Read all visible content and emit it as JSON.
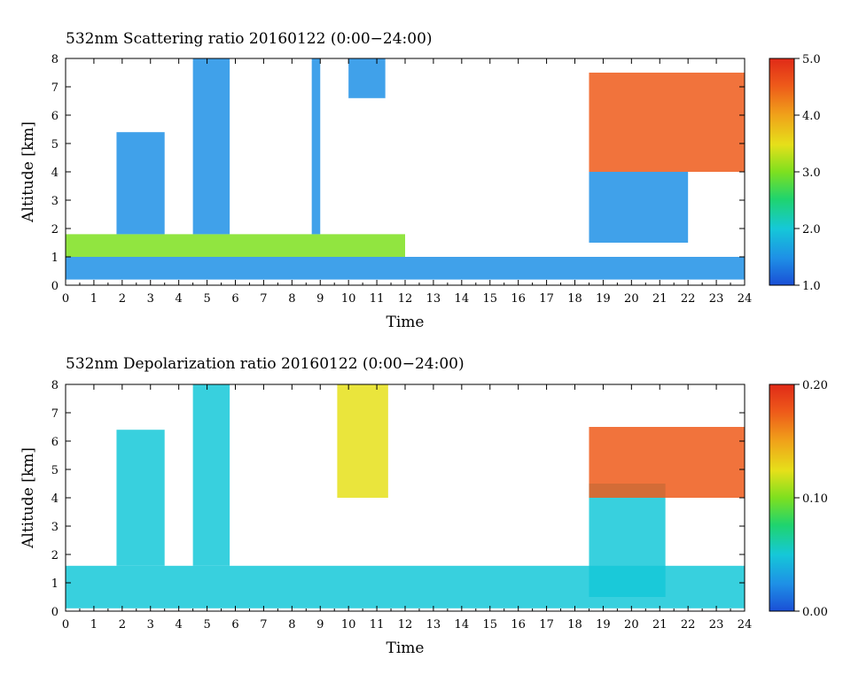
{
  "colors": {
    "scale": [
      "#1a4fd6",
      "#1e90e6",
      "#15c8d8",
      "#1fd46e",
      "#7ee01f",
      "#e6e01a",
      "#f0a21a",
      "#ee5a1a",
      "#e02a18"
    ]
  },
  "chart_data": [
    {
      "type": "heatmap",
      "title": "532nm Scattering ratio  20160122 (0:00−24:00)",
      "xlabel": "Time",
      "ylabel": "Altitude [km]",
      "xlim": [
        0,
        24
      ],
      "ylim": [
        0,
        8
      ],
      "x_ticks": [
        "0",
        "1",
        "2",
        "3",
        "4",
        "5",
        "6",
        "7",
        "8",
        "9",
        "10",
        "11",
        "12",
        "13",
        "14",
        "15",
        "16",
        "17",
        "18",
        "19",
        "20",
        "21",
        "22",
        "23",
        "24"
      ],
      "y_ticks": [
        "0",
        "1",
        "2",
        "3",
        "4",
        "5",
        "6",
        "7",
        "8"
      ],
      "colorbar": {
        "min": 1.0,
        "max": 5.0,
        "ticks": [
          "1.0",
          "2.0",
          "3.0",
          "4.0",
          "5.0"
        ]
      },
      "layers": [
        {
          "feature": "boundary layer base",
          "x_range": [
            0,
            24
          ],
          "altitude_km": [
            0.2,
            1.0
          ],
          "value": 1.5
        },
        {
          "feature": "boundary layer top",
          "x_range": [
            0,
            12
          ],
          "altitude_km": [
            1.0,
            1.8
          ],
          "value": 3.2
        },
        {
          "feature": "cirrus column",
          "x_range": [
            1.8,
            3.5
          ],
          "altitude_km": [
            1.8,
            5.4
          ],
          "value": 1.3
        },
        {
          "feature": "cirrus column",
          "x_range": [
            4.5,
            5.8
          ],
          "altitude_km": [
            1.8,
            8.0
          ],
          "value": 1.4
        },
        {
          "feature": "thin column",
          "x_range": [
            8.7,
            9.0
          ],
          "altitude_km": [
            1.8,
            8.0
          ],
          "value": 1.3
        },
        {
          "feature": "upper cloud",
          "x_range": [
            10.0,
            11.3
          ],
          "altitude_km": [
            6.6,
            8.0
          ],
          "value": 1.3
        },
        {
          "feature": "upper cloud",
          "x_range": [
            18.5,
            24.0
          ],
          "altitude_km": [
            4.0,
            7.5
          ],
          "value": 4.5
        },
        {
          "feature": "lower cloud",
          "x_range": [
            18.5,
            22.0
          ],
          "altitude_km": [
            1.5,
            4.0
          ],
          "value": 1.3
        }
      ]
    },
    {
      "type": "heatmap",
      "title": "532nm Depolarization ratio  20160122 (0:00−24:00)",
      "xlabel": "Time",
      "ylabel": "Altitude [km]",
      "xlim": [
        0,
        24
      ],
      "ylim": [
        0,
        8
      ],
      "x_ticks": [
        "0",
        "1",
        "2",
        "3",
        "4",
        "5",
        "6",
        "7",
        "8",
        "9",
        "10",
        "11",
        "12",
        "13",
        "14",
        "15",
        "16",
        "17",
        "18",
        "19",
        "20",
        "21",
        "22",
        "23",
        "24"
      ],
      "y_ticks": [
        "0",
        "1",
        "2",
        "3",
        "4",
        "5",
        "6",
        "7",
        "8"
      ],
      "colorbar": {
        "min": 0.0,
        "max": 0.2,
        "ticks": [
          "0.00",
          "0.10",
          "0.20"
        ]
      },
      "layers": [
        {
          "feature": "boundary layer",
          "x_range": [
            0,
            24
          ],
          "altitude_km": [
            0.1,
            1.6
          ],
          "value": 0.04
        },
        {
          "feature": "cloud column",
          "x_range": [
            1.8,
            3.5
          ],
          "altitude_km": [
            1.6,
            6.4
          ],
          "value": 0.05
        },
        {
          "feature": "cloud column",
          "x_range": [
            4.5,
            5.8
          ],
          "altitude_km": [
            1.6,
            8.0
          ],
          "value": 0.05
        },
        {
          "feature": "noisy upper layer",
          "x_range": [
            9.6,
            11.4
          ],
          "altitude_km": [
            4.0,
            8.0
          ],
          "value": 0.12
        },
        {
          "feature": "cloud body",
          "x_range": [
            18.5,
            21.2
          ],
          "altitude_km": [
            0.5,
            4.5
          ],
          "value": 0.05
        },
        {
          "feature": "upper depolarizing layer",
          "x_range": [
            18.5,
            24.0
          ],
          "altitude_km": [
            4.0,
            6.5
          ],
          "value": 0.18
        }
      ]
    }
  ]
}
